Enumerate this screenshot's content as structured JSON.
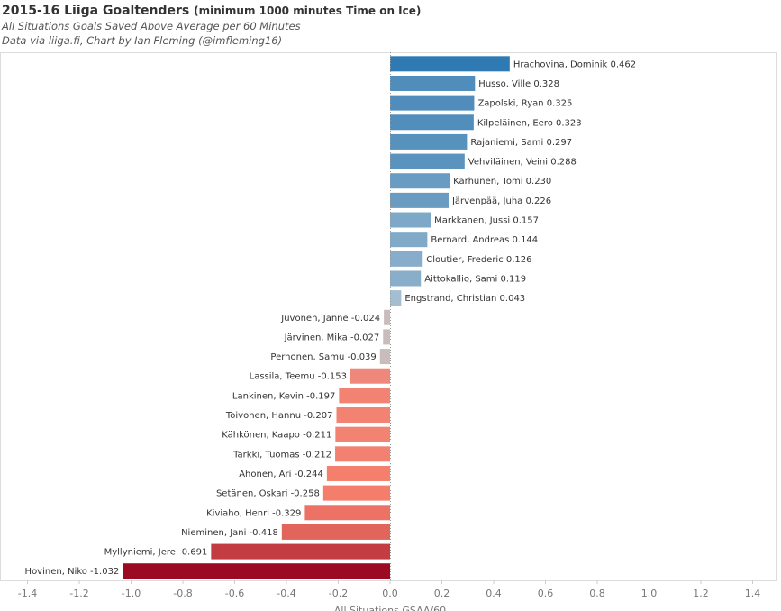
{
  "header": {
    "title": "2015-16 Liiga Goaltenders",
    "title_note": "(minimum 1000 minutes Time on Ice)",
    "subtitle": "All Situations Goals Saved Above Average per 60 Minutes",
    "credit": "Data via liiga.fi, Chart by Ian Fleming (@imfleming16)"
  },
  "chart_data": {
    "type": "bar",
    "orientation": "horizontal",
    "title": "2015-16 Liiga Goaltenders (minimum 1000 minutes Time on Ice)",
    "subtitle": "All Situations Goals Saved Above Average per 60 Minutes",
    "xlabel": "All Situations GSAA/60",
    "ylabel": "",
    "xlim": [
      -1.4,
      1.4
    ],
    "xticks": [
      -1.4,
      -1.2,
      -1.0,
      -0.8,
      -0.6,
      -0.4,
      -0.2,
      0.0,
      0.2,
      0.4,
      0.6,
      0.8,
      1.0,
      1.2,
      1.4
    ],
    "xtick_labels": [
      "-1.4",
      "-1.2",
      "-1.0",
      "-0.8",
      "-0.6",
      "-0.4",
      "-0.2",
      "0.0",
      "0.2",
      "0.4",
      "0.6",
      "0.8",
      "1.0",
      "1.2",
      "1.4"
    ],
    "color_scale": {
      "negative_max": "#9b0a22",
      "neutral": "#c9bcbc",
      "positive_max": "#2f7ab3"
    },
    "categories": [
      "Hrachovina, Dominik",
      "Husso, Ville",
      "Zapolski, Ryan",
      "Kilpeläinen, Eero",
      "Rajaniemi, Sami",
      "Vehviläinen, Veini",
      "Karhunen, Tomi",
      "Järvenpää, Juha",
      "Markkanen, Jussi",
      "Bernard, Andreas",
      "Cloutier, Frederic",
      "Aittokallio, Sami",
      "Engstrand, Christian",
      "Juvonen, Janne",
      "Järvinen, Mika",
      "Perhonen, Samu",
      "Lassila, Teemu",
      "Lankinen, Kevin",
      "Toivonen, Hannu",
      "Kähkönen, Kaapo",
      "Tarkki, Tuomas",
      "Ahonen, Ari",
      "Setänen, Oskari",
      "Kiviaho, Henri",
      "Nieminen, Jani",
      "Myllyniemi, Jere",
      "Hovinen, Niko"
    ],
    "values": [
      0.462,
      0.328,
      0.325,
      0.323,
      0.297,
      0.288,
      0.23,
      0.226,
      0.157,
      0.144,
      0.126,
      0.119,
      0.043,
      -0.024,
      -0.027,
      -0.039,
      -0.153,
      -0.197,
      -0.207,
      -0.211,
      -0.212,
      -0.244,
      -0.258,
      -0.329,
      -0.418,
      -0.691,
      -1.032
    ],
    "value_labels": [
      "0.462",
      "0.328",
      "0.325",
      "0.323",
      "0.297",
      "0.288",
      "0.230",
      "0.226",
      "0.157",
      "0.144",
      "0.126",
      "0.119",
      "0.043",
      "-0.024",
      "-0.027",
      "-0.039",
      "-0.153",
      "-0.197",
      "-0.207",
      "-0.211",
      "-0.212",
      "-0.244",
      "-0.258",
      "-0.329",
      "-0.418",
      "-0.691",
      "-1.032"
    ],
    "grid": false,
    "zero_line": "dotted"
  }
}
